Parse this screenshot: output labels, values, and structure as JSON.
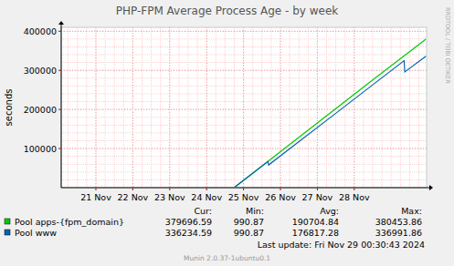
{
  "chart_data": {
    "type": "line",
    "title": "PHP-FPM Average Process Age - by week",
    "y_label": "seconds",
    "watermark": "RRDTOOL / TOBI OETIKER",
    "last_update": "Last update: Fri Nov 29 00:30:43 2024",
    "footer": "Munin 2.0.37-1ubuntu0.1",
    "stats_headers": [
      "Cur:",
      "Min:",
      "Avg:",
      "Max:"
    ],
    "xlim": [
      20.06,
      29.96
    ],
    "xticks": [
      {
        "value": 21,
        "label": "21 Nov"
      },
      {
        "value": 22,
        "label": "22 Nov"
      },
      {
        "value": 23,
        "label": "23 Nov"
      },
      {
        "value": 24,
        "label": "24 Nov"
      },
      {
        "value": 25,
        "label": "25 Nov"
      },
      {
        "value": 26,
        "label": "26 Nov"
      },
      {
        "value": 27,
        "label": "27 Nov"
      },
      {
        "value": 28,
        "label": "28 Nov"
      }
    ],
    "ylim": [
      0,
      410000
    ],
    "yticks": [
      100000,
      200000,
      300000,
      400000
    ],
    "grid": true,
    "legend": "bottom",
    "series": [
      {
        "name": "Pool apps-{fpm_domain}",
        "color": "#00cc00",
        "x": [
          24.76,
          25.5,
          26.5,
          27.5,
          28.5,
          29.94
        ],
        "values": [
          990,
          55300,
          128700,
          202100,
          275500,
          379697
        ],
        "stats": [
          379696.59,
          990.87,
          190704.84,
          380453.86
        ]
      },
      {
        "name": "Pool www",
        "color": "#0066b3",
        "x": [
          24.76,
          25.66,
          25.68,
          26.5,
          27.5,
          28.5,
          29.35,
          29.37,
          29.94
        ],
        "values": [
          990,
          67000,
          58000,
          117500,
          190200,
          262900,
          324800,
          296000,
          336235
        ],
        "stats": [
          336234.59,
          990.87,
          176817.28,
          336991.86
        ]
      }
    ]
  }
}
